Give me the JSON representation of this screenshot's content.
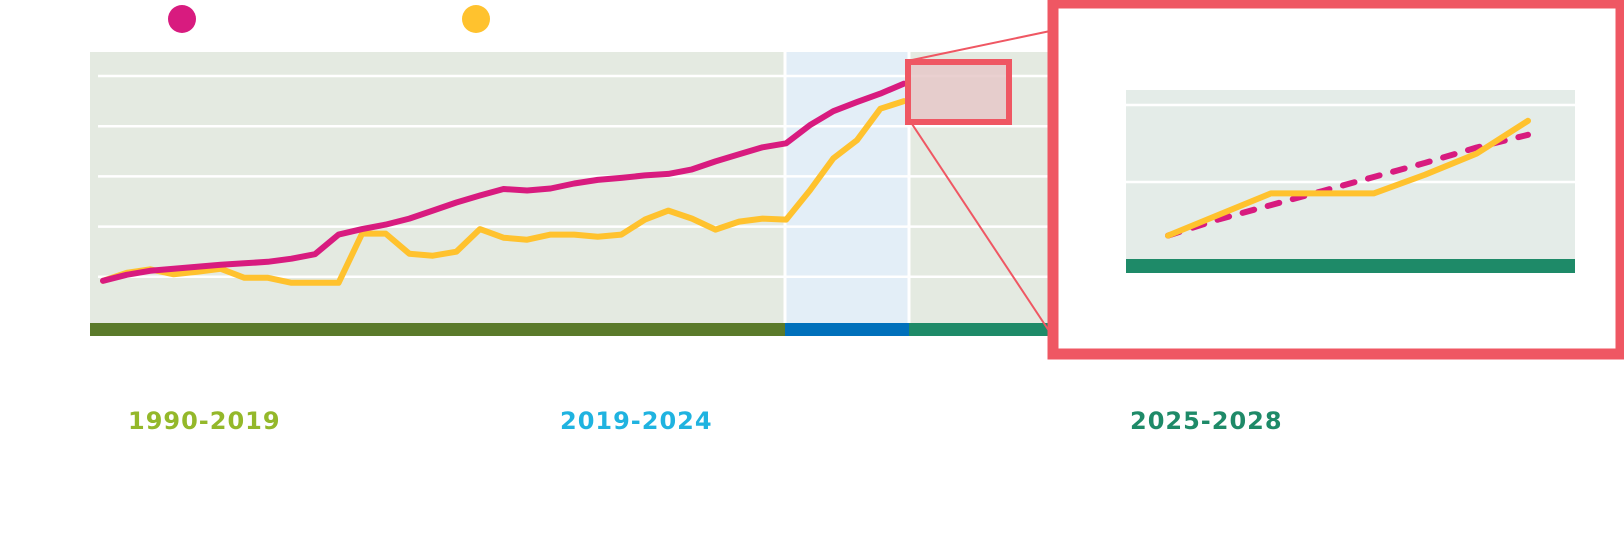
{
  "chart_data": {
    "type": "line",
    "title": "",
    "xlabel": "",
    "ylabel": "",
    "x_range": [
      1990,
      2024
    ],
    "ylim": [
      0,
      5.2
    ],
    "grid": true,
    "legend": "top-left",
    "periods": [
      {
        "label": "1990-2019",
        "start": 1990,
        "end": 2019,
        "color": "#94b82a",
        "band_color": "#5a7a2a",
        "bg": "#e4eae1"
      },
      {
        "label": "2019-2024",
        "start": 2019,
        "end": 2024,
        "color": "#1fb3e0",
        "band_color": "#0070bb",
        "bg": "#e3eef7"
      },
      {
        "label": "2025-2028",
        "start": 2024,
        "end": 2025.4,
        "color": "#1e8a68",
        "band_color": "#1e8a68",
        "bg": "#e4eae1"
      }
    ],
    "series": [
      {
        "color": "#d81b7f",
        "x": [
          1990,
          1991,
          1992,
          1993,
          1994,
          1995,
          1996,
          1997,
          1998,
          1999,
          2000,
          2001,
          2002,
          2003,
          2004,
          2005,
          2006,
          2007,
          2008,
          2009,
          2010,
          2011,
          2012,
          2013,
          2014,
          2015,
          2016,
          2017,
          2018,
          2019,
          2020,
          2021,
          2022,
          2023,
          2024
        ],
        "values": [
          0.92,
          1.04,
          1.12,
          1.16,
          1.2,
          1.24,
          1.27,
          1.3,
          1.36,
          1.45,
          1.84,
          1.95,
          2.04,
          2.16,
          2.32,
          2.48,
          2.62,
          2.75,
          2.72,
          2.76,
          2.86,
          2.93,
          2.97,
          3.02,
          3.05,
          3.14,
          3.3,
          3.44,
          3.58,
          3.66,
          4.02,
          4.3,
          4.48,
          4.65,
          4.85
        ]
      },
      {
        "color": "#ffc22e",
        "x": [
          1990,
          1991,
          1992,
          1993,
          1994,
          1995,
          1996,
          1997,
          1998,
          1999,
          2000,
          2001,
          2002,
          2003,
          2004,
          2005,
          2006,
          2007,
          2008,
          2009,
          2010,
          2011,
          2012,
          2013,
          2014,
          2015,
          2016,
          2017,
          2018,
          2019,
          2020,
          2021,
          2022,
          2023,
          2024
        ],
        "values": [
          0.92,
          1.08,
          1.15,
          1.05,
          1.1,
          1.16,
          0.98,
          0.98,
          0.88,
          0.88,
          0.88,
          1.86,
          1.86,
          1.46,
          1.42,
          1.5,
          1.95,
          1.78,
          1.74,
          1.84,
          1.84,
          1.8,
          1.84,
          2.14,
          2.32,
          2.16,
          1.94,
          2.1,
          2.16,
          2.14,
          2.72,
          3.36,
          3.72,
          4.35,
          4.5
        ]
      }
    ],
    "inset": {
      "series": [
        {
          "color": "#d81b7f",
          "style": "dashed",
          "x": [
            0,
            1,
            2,
            3,
            4,
            5,
            6,
            7
          ],
          "values": [
            0.5,
            0.85,
            1.15,
            1.45,
            1.75,
            2.05,
            2.38,
            2.65
          ]
        },
        {
          "color": "#ffc22e",
          "style": "solid",
          "x": [
            0,
            1,
            2,
            3,
            4,
            5,
            6,
            7
          ],
          "values": [
            0.5,
            0.95,
            1.4,
            1.4,
            1.4,
            1.8,
            2.25,
            2.95
          ]
        }
      ],
      "ylim": [
        0,
        3.5
      ],
      "band_color": "#1e8a68",
      "bg": "#e4ece8",
      "frame_color": "#ef5763"
    }
  }
}
